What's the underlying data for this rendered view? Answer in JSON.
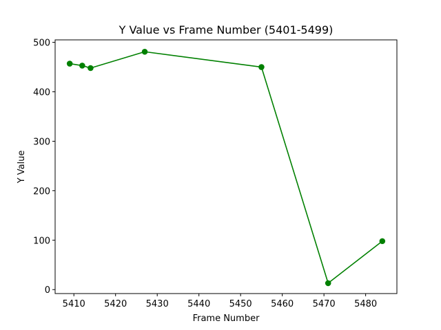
{
  "chart_data": {
    "type": "line",
    "title": "Y Value vs Frame Number (5401-5499)",
    "xlabel": "Frame Number",
    "ylabel": "Y Value",
    "xlim": [
      5405.5,
      5487.5
    ],
    "ylim": [
      -8,
      505
    ],
    "xticks": [
      5410,
      5420,
      5430,
      5440,
      5450,
      5460,
      5470,
      5480
    ],
    "yticks": [
      0,
      100,
      200,
      300,
      400,
      500
    ],
    "grid": false,
    "series": [
      {
        "color": "#008000",
        "marker": "circle",
        "x": [
          5409,
          5412,
          5414,
          5427,
          5455,
          5471,
          5484
        ],
        "y": [
          457,
          453,
          448,
          481,
          450,
          13,
          98
        ]
      }
    ]
  }
}
